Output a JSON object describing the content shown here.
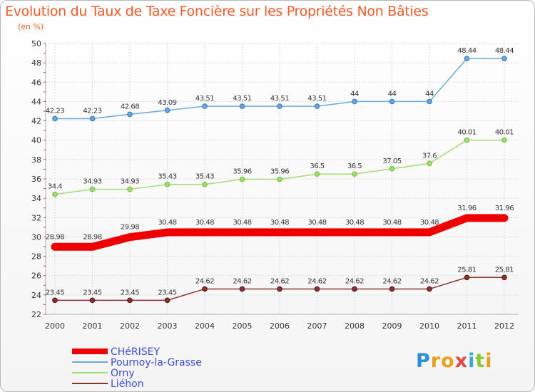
{
  "chart_data": {
    "type": "line",
    "title": "Evolution du Taux de Taxe Foncière sur les Propriétés Non Bâties",
    "subtitle": "(en %)",
    "categories": [
      "2000",
      "2001",
      "2002",
      "2003",
      "2004",
      "2005",
      "2006",
      "2007",
      "2008",
      "2009",
      "2010",
      "2011",
      "2012"
    ],
    "ylim": [
      22,
      50
    ],
    "yticks": [
      "22",
      "24",
      "26",
      "28",
      "30",
      "32",
      "34",
      "36",
      "38",
      "40",
      "42",
      "44",
      "46",
      "48",
      "50"
    ],
    "series": [
      {
        "name": "CHéRISEY",
        "color": "#ee0000",
        "emphasis": true,
        "values": [
          28.98,
          28.98,
          29.98,
          30.48,
          30.48,
          30.48,
          30.48,
          30.48,
          30.48,
          30.48,
          30.48,
          31.96,
          31.96
        ],
        "labels": [
          "28.98",
          "28.98",
          "29.98",
          "30.48",
          "30.48",
          "30.48",
          "30.48",
          "30.48",
          "30.48",
          "30.48",
          "30.48",
          "31.96",
          "31.96"
        ]
      },
      {
        "name": "Pournoy-la-Grasse",
        "color": "#6ea8dc",
        "marker": "#3b82c4",
        "values": [
          42.23,
          42.23,
          42.68,
          43.09,
          43.51,
          43.51,
          43.51,
          43.51,
          44,
          44,
          44,
          48.44,
          48.44
        ],
        "labels": [
          "42.23",
          "42.23",
          "42.68",
          "43.09",
          "43.51",
          "43.51",
          "43.51",
          "43.51",
          "44",
          "44",
          "44",
          "48.44",
          "48.44"
        ]
      },
      {
        "name": "Orny",
        "color": "#a0dc78",
        "marker": "#7cc440",
        "values": [
          34.4,
          34.93,
          34.93,
          35.43,
          35.43,
          35.96,
          35.96,
          36.5,
          36.5,
          37.05,
          37.6,
          40.01,
          40.01
        ],
        "labels": [
          "34.4",
          "34.93",
          "34.93",
          "35.43",
          "35.43",
          "35.96",
          "35.96",
          "36.5",
          "36.5",
          "37.05",
          "37.6",
          "40.01",
          "40.01"
        ]
      },
      {
        "name": "Liéhon",
        "color": "#8c3232",
        "marker": "#5a1a1a",
        "values": [
          23.45,
          23.45,
          23.45,
          23.45,
          24.62,
          24.62,
          24.62,
          24.62,
          24.62,
          24.62,
          24.62,
          25.81,
          25.81
        ],
        "labels": [
          "23.45",
          "23.45",
          "23.45",
          "23.45",
          "24.62",
          "24.62",
          "24.62",
          "24.62",
          "24.62",
          "24.62",
          "24.62",
          "25.81",
          "25.81"
        ]
      }
    ]
  },
  "brand": {
    "text": "Proxiti"
  }
}
